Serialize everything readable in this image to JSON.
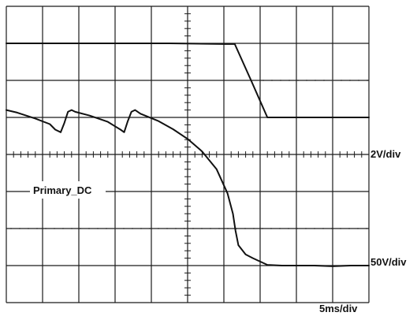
{
  "chart_data": {
    "type": "line",
    "title": "",
    "xlabel": "",
    "ylabel": "",
    "divisions": {
      "x": 10,
      "y": 8
    },
    "xlim": [
      0,
      10
    ],
    "ylim": [
      0,
      8
    ],
    "grid": true,
    "labels": {
      "top_scale": "2V/div",
      "bottom_scale": "50V/div",
      "time_scale": "5ms/div",
      "trace_label": "Primary_DC"
    },
    "reference_levels": {
      "top_baseline": 5.0,
      "bottom_baseline": 1.0
    },
    "series": [
      {
        "x": [
          0,
          2.0,
          3.0,
          4.5,
          6.0,
          6.3,
          6.75,
          7.2,
          7.5,
          8,
          8.5,
          9,
          9.5,
          10
        ],
        "values": [
          7.0,
          7.0,
          7.0,
          7.0,
          6.98,
          6.98,
          6.0,
          5.0,
          5.0,
          5.0,
          5.0,
          5.0,
          5.0,
          5.0
        ]
      },
      {
        "x": [
          0,
          0.3,
          0.8,
          1.2,
          1.35,
          1.5,
          1.6,
          1.7,
          1.8,
          1.9,
          2.3,
          2.8,
          3.0,
          3.15,
          3.25,
          3.35,
          3.45,
          3.55,
          3.7,
          4.2,
          4.6,
          5.0,
          5.4,
          5.8,
          6.1,
          6.25,
          6.32,
          6.4,
          6.6,
          6.8,
          7.2,
          7.6,
          8,
          8.5,
          9,
          9.5,
          10
        ],
        "values": [
          5.2,
          5.13,
          4.97,
          4.82,
          4.67,
          4.6,
          4.85,
          5.15,
          5.2,
          5.15,
          5.05,
          4.88,
          4.76,
          4.67,
          4.6,
          4.9,
          5.15,
          5.2,
          5.1,
          4.9,
          4.68,
          4.42,
          4.08,
          3.6,
          2.95,
          2.4,
          1.95,
          1.55,
          1.3,
          1.2,
          1.02,
          1.0,
          1.0,
          1.0,
          0.98,
          1.0,
          1.0
        ]
      }
    ]
  }
}
